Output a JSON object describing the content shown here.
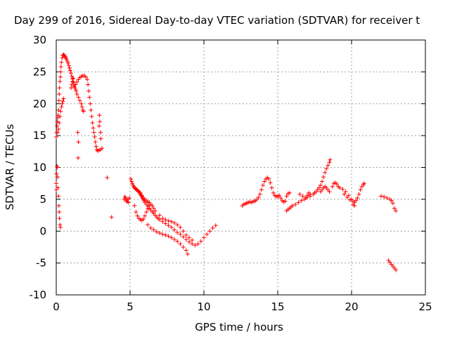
{
  "chart_data": {
    "type": "scatter",
    "title": "Day 299 of 2016, Sidereal Day-to-day VTEC variation (SDTVAR) for receiver t",
    "xlabel": "GPS time / hours",
    "ylabel": "SDTVAR / TECUs",
    "xlim": [
      0,
      25
    ],
    "ylim": [
      -10,
      30
    ],
    "xticks": [
      "0",
      "5",
      "10",
      "15",
      "20",
      "25"
    ],
    "yticks": [
      "-10",
      "-5",
      "0",
      "5",
      "10",
      "15",
      "20",
      "25",
      "30"
    ],
    "grid": true,
    "marker": "plus",
    "color": "#ff0000",
    "series": [
      {
        "points": [
          [
            0.0,
            6.5
          ],
          [
            0.0,
            7.5
          ],
          [
            0.02,
            9.0
          ],
          [
            0.05,
            10.2
          ],
          [
            0.08,
            10.0
          ],
          [
            0.1,
            8.5
          ],
          [
            0.12,
            6.8
          ],
          [
            0.15,
            5.5
          ],
          [
            0.18,
            4.0
          ],
          [
            0.2,
            3.0
          ],
          [
            0.22,
            2.0
          ],
          [
            0.25,
            1.0
          ],
          [
            0.28,
            0.6
          ],
          [
            0.0,
            14.8
          ],
          [
            0.02,
            15.5
          ],
          [
            0.05,
            16.5
          ],
          [
            0.08,
            17.2
          ],
          [
            0.1,
            17.8
          ],
          [
            0.12,
            18.2
          ],
          [
            0.15,
            19.0
          ],
          [
            0.18,
            20.5
          ],
          [
            0.2,
            21.5
          ],
          [
            0.22,
            22.5
          ],
          [
            0.25,
            23.5
          ],
          [
            0.28,
            24.2
          ],
          [
            0.3,
            25.0
          ],
          [
            0.32,
            25.8
          ],
          [
            0.35,
            26.5
          ],
          [
            0.4,
            27.2
          ],
          [
            0.45,
            27.6
          ],
          [
            0.5,
            27.7
          ],
          [
            0.55,
            27.6
          ],
          [
            0.6,
            27.4
          ],
          [
            0.65,
            27.2
          ],
          [
            0.7,
            27.0
          ],
          [
            0.75,
            26.7
          ],
          [
            0.8,
            26.4
          ],
          [
            0.85,
            26.0
          ],
          [
            0.9,
            25.6
          ],
          [
            0.95,
            25.2
          ],
          [
            1.0,
            24.8
          ],
          [
            1.05,
            24.3
          ],
          [
            1.1,
            23.9
          ],
          [
            1.15,
            23.4
          ],
          [
            1.2,
            23.0
          ],
          [
            1.25,
            22.6
          ],
          [
            1.3,
            22.3
          ],
          [
            1.35,
            22.0
          ],
          [
            0.1,
            15.5
          ],
          [
            0.15,
            16.0
          ],
          [
            0.2,
            17.0
          ],
          [
            0.25,
            18.0
          ],
          [
            0.3,
            18.8
          ],
          [
            0.35,
            19.5
          ],
          [
            0.4,
            20.0
          ],
          [
            0.45,
            20.4
          ],
          [
            0.5,
            20.8
          ],
          [
            1.2,
            22.8
          ],
          [
            1.3,
            23.0
          ],
          [
            1.4,
            23.4
          ],
          [
            1.5,
            23.8
          ],
          [
            1.6,
            24.1
          ],
          [
            1.7,
            24.3
          ],
          [
            1.8,
            24.4
          ],
          [
            1.9,
            24.4
          ],
          [
            2.0,
            24.2
          ],
          [
            2.1,
            23.8
          ],
          [
            2.15,
            23.0
          ],
          [
            2.2,
            22.0
          ],
          [
            2.25,
            21.0
          ],
          [
            2.3,
            20.0
          ],
          [
            2.35,
            19.0
          ],
          [
            2.4,
            18.0
          ],
          [
            2.45,
            17.0
          ],
          [
            2.5,
            16.2
          ],
          [
            2.55,
            15.5
          ],
          [
            2.6,
            14.8
          ],
          [
            2.65,
            14.0
          ],
          [
            2.7,
            13.3
          ],
          [
            2.75,
            12.8
          ],
          [
            1.4,
            21.5
          ],
          [
            1.5,
            21.0
          ],
          [
            1.6,
            20.5
          ],
          [
            1.7,
            20.0
          ],
          [
            1.75,
            19.5
          ],
          [
            1.8,
            19.0
          ],
          [
            1.85,
            18.8
          ],
          [
            1.0,
            22.5
          ],
          [
            1.05,
            23.0
          ],
          [
            1.1,
            23.5
          ],
          [
            1.15,
            24.0
          ],
          [
            2.8,
            12.6
          ],
          [
            2.9,
            12.7
          ],
          [
            3.0,
            12.8
          ],
          [
            3.1,
            13.0
          ],
          [
            2.9,
            16.5
          ],
          [
            2.95,
            17.2
          ],
          [
            2.92,
            18.2
          ],
          [
            3.0,
            15.5
          ],
          [
            3.02,
            14.5
          ],
          [
            1.45,
            15.5
          ],
          [
            1.5,
            14.0
          ],
          [
            1.48,
            11.5
          ],
          [
            3.45,
            8.4
          ],
          [
            3.75,
            2.2
          ],
          [
            4.6,
            5.0
          ],
          [
            4.65,
            5.4
          ],
          [
            4.7,
            5.2
          ],
          [
            4.75,
            4.8
          ],
          [
            4.8,
            4.6
          ],
          [
            4.85,
            5.0
          ],
          [
            4.9,
            4.5
          ],
          [
            4.95,
            5.2
          ],
          [
            5.05,
            8.2
          ],
          [
            5.1,
            7.8
          ],
          [
            5.15,
            7.5
          ],
          [
            5.2,
            7.2
          ],
          [
            5.25,
            7.0
          ],
          [
            5.3,
            6.8
          ],
          [
            5.35,
            6.7
          ],
          [
            5.4,
            6.6
          ],
          [
            5.45,
            6.5
          ],
          [
            5.5,
            6.4
          ],
          [
            5.55,
            6.3
          ],
          [
            5.6,
            6.2
          ],
          [
            5.65,
            6.0
          ],
          [
            5.7,
            5.8
          ],
          [
            5.75,
            5.6
          ],
          [
            5.8,
            5.4
          ],
          [
            5.85,
            5.2
          ],
          [
            5.9,
            5.0
          ],
          [
            5.95,
            4.8
          ],
          [
            6.0,
            4.5
          ],
          [
            6.1,
            4.2
          ],
          [
            6.2,
            3.9
          ],
          [
            6.3,
            3.6
          ],
          [
            6.4,
            3.3
          ],
          [
            6.5,
            3.0
          ],
          [
            6.6,
            2.8
          ],
          [
            6.7,
            2.5
          ],
          [
            6.8,
            2.2
          ],
          [
            6.9,
            2.0
          ],
          [
            7.0,
            1.8
          ],
          [
            7.2,
            1.5
          ],
          [
            7.4,
            1.2
          ],
          [
            7.6,
            0.9
          ],
          [
            7.8,
            0.6
          ],
          [
            8.0,
            0.2
          ],
          [
            8.2,
            -0.2
          ],
          [
            8.4,
            -0.5
          ],
          [
            8.6,
            -0.9
          ],
          [
            8.8,
            -1.3
          ],
          [
            9.0,
            -1.7
          ],
          [
            9.2,
            -2.0
          ],
          [
            9.4,
            -2.2
          ],
          [
            9.6,
            -2.0
          ],
          [
            9.8,
            -1.6
          ],
          [
            10.0,
            -1.0
          ],
          [
            10.2,
            -0.5
          ],
          [
            10.4,
            0.0
          ],
          [
            10.6,
            0.5
          ],
          [
            10.8,
            0.9
          ],
          [
            5.3,
            4.0
          ],
          [
            5.4,
            3.0
          ],
          [
            5.5,
            2.4
          ],
          [
            5.6,
            2.0
          ],
          [
            5.7,
            1.8
          ],
          [
            5.8,
            1.7
          ],
          [
            5.9,
            1.9
          ],
          [
            6.0,
            2.4
          ],
          [
            6.1,
            3.0
          ],
          [
            6.2,
            3.5
          ],
          [
            6.3,
            4.0
          ],
          [
            6.4,
            4.2
          ],
          [
            6.5,
            4.0
          ],
          [
            6.6,
            3.6
          ],
          [
            6.7,
            3.2
          ],
          [
            6.2,
            1.0
          ],
          [
            6.4,
            0.5
          ],
          [
            6.6,
            0.2
          ],
          [
            6.8,
            -0.1
          ],
          [
            7.0,
            -0.3
          ],
          [
            7.2,
            -0.5
          ],
          [
            7.4,
            -0.6
          ],
          [
            7.6,
            -0.8
          ],
          [
            7.8,
            -1.0
          ],
          [
            8.0,
            -1.3
          ],
          [
            8.2,
            -1.6
          ],
          [
            8.4,
            -2.0
          ],
          [
            8.6,
            -2.5
          ],
          [
            8.8,
            -3.0
          ],
          [
            8.9,
            -3.6
          ],
          [
            7.0,
            2.5
          ],
          [
            7.2,
            2.0
          ],
          [
            7.4,
            1.8
          ],
          [
            7.6,
            1.6
          ],
          [
            7.8,
            1.5
          ],
          [
            8.0,
            1.3
          ],
          [
            8.2,
            1.0
          ],
          [
            8.4,
            0.6
          ],
          [
            8.6,
            0.0
          ],
          [
            8.8,
            -0.6
          ],
          [
            9.0,
            -1.0
          ],
          [
            9.2,
            -1.4
          ],
          [
            5.7,
            6.0
          ],
          [
            5.8,
            5.6
          ],
          [
            5.9,
            5.2
          ],
          [
            6.0,
            5.0
          ],
          [
            6.1,
            4.8
          ],
          [
            6.2,
            4.6
          ],
          [
            6.3,
            4.5
          ],
          [
            12.6,
            4.0
          ],
          [
            12.7,
            4.2
          ],
          [
            12.8,
            4.3
          ],
          [
            12.9,
            4.4
          ],
          [
            13.0,
            4.5
          ],
          [
            13.1,
            4.6
          ],
          [
            13.2,
            4.5
          ],
          [
            13.3,
            4.6
          ],
          [
            13.4,
            4.7
          ],
          [
            13.5,
            4.8
          ],
          [
            13.6,
            5.0
          ],
          [
            13.7,
            5.3
          ],
          [
            13.8,
            5.8
          ],
          [
            13.9,
            6.5
          ],
          [
            14.0,
            7.2
          ],
          [
            14.1,
            7.8
          ],
          [
            14.2,
            8.2
          ],
          [
            14.3,
            8.4
          ],
          [
            14.4,
            8.2
          ],
          [
            14.5,
            7.6
          ],
          [
            14.6,
            6.8
          ],
          [
            14.7,
            6.0
          ],
          [
            14.8,
            5.6
          ],
          [
            14.9,
            5.4
          ],
          [
            15.0,
            5.5
          ],
          [
            15.1,
            5.6
          ],
          [
            15.2,
            5.2
          ],
          [
            15.3,
            4.8
          ],
          [
            15.4,
            4.6
          ],
          [
            15.5,
            4.7
          ],
          [
            15.6,
            5.5
          ],
          [
            15.7,
            5.9
          ],
          [
            15.8,
            6.0
          ],
          [
            15.6,
            3.2
          ],
          [
            15.7,
            3.4
          ],
          [
            15.8,
            3.6
          ],
          [
            15.9,
            3.8
          ],
          [
            16.0,
            4.0
          ],
          [
            16.2,
            4.2
          ],
          [
            16.4,
            4.5
          ],
          [
            16.6,
            4.8
          ],
          [
            16.8,
            5.0
          ],
          [
            17.0,
            5.3
          ],
          [
            17.2,
            5.5
          ],
          [
            17.4,
            5.8
          ],
          [
            17.5,
            6.0
          ],
          [
            17.6,
            6.2
          ],
          [
            17.7,
            6.5
          ],
          [
            16.5,
            5.8
          ],
          [
            16.7,
            5.5
          ],
          [
            16.9,
            5.2
          ],
          [
            17.0,
            5.6
          ],
          [
            17.1,
            6.0
          ],
          [
            17.2,
            5.8
          ],
          [
            17.8,
            6.8
          ],
          [
            17.9,
            7.2
          ],
          [
            18.0,
            7.8
          ],
          [
            18.1,
            8.5
          ],
          [
            18.2,
            9.2
          ],
          [
            18.3,
            9.8
          ],
          [
            18.4,
            10.3
          ],
          [
            18.5,
            10.8
          ],
          [
            18.55,
            11.2
          ],
          [
            17.9,
            6.2
          ],
          [
            18.0,
            6.5
          ],
          [
            18.1,
            6.8
          ],
          [
            18.2,
            7.0
          ],
          [
            18.3,
            6.8
          ],
          [
            18.4,
            6.5
          ],
          [
            18.5,
            6.2
          ],
          [
            18.7,
            7.0
          ],
          [
            18.8,
            7.5
          ],
          [
            18.9,
            7.6
          ],
          [
            19.0,
            7.4
          ],
          [
            19.1,
            7.0
          ],
          [
            19.2,
            6.8
          ],
          [
            19.4,
            6.6
          ],
          [
            19.6,
            6.2
          ],
          [
            19.8,
            5.6
          ],
          [
            20.0,
            5.0
          ],
          [
            20.1,
            4.7
          ],
          [
            20.2,
            4.5
          ],
          [
            20.3,
            4.8
          ],
          [
            20.4,
            5.2
          ],
          [
            20.5,
            5.8
          ],
          [
            20.6,
            6.5
          ],
          [
            20.7,
            7.0
          ],
          [
            20.8,
            7.3
          ],
          [
            20.85,
            7.5
          ],
          [
            19.5,
            5.8
          ],
          [
            19.7,
            5.3
          ],
          [
            19.9,
            4.9
          ],
          [
            20.1,
            4.2
          ],
          [
            20.2,
            4.0
          ],
          [
            22.0,
            5.5
          ],
          [
            22.2,
            5.4
          ],
          [
            22.4,
            5.2
          ],
          [
            22.6,
            5.0
          ],
          [
            22.7,
            4.8
          ],
          [
            22.8,
            4.4
          ],
          [
            22.9,
            3.6
          ],
          [
            23.0,
            3.2
          ],
          [
            22.5,
            -4.6
          ],
          [
            22.6,
            -4.9
          ],
          [
            22.7,
            -5.2
          ],
          [
            22.8,
            -5.5
          ],
          [
            22.9,
            -5.8
          ],
          [
            23.0,
            -6.1
          ]
        ]
      }
    ]
  }
}
